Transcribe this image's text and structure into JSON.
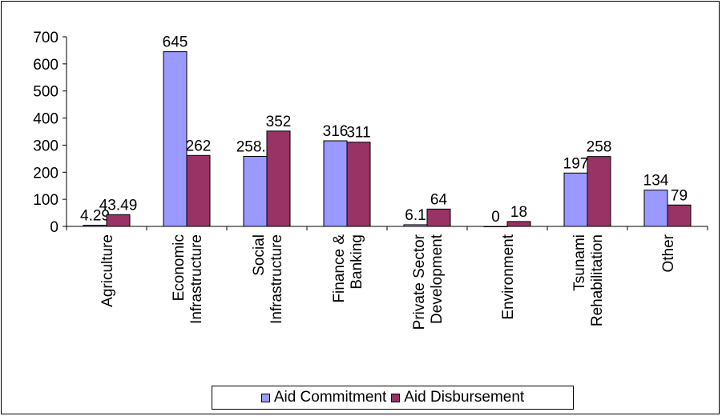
{
  "chart_data": {
    "type": "bar",
    "categories": [
      [
        "Agriculture"
      ],
      [
        "Economic",
        "Infrastructure"
      ],
      [
        "Social",
        "Infrastructure"
      ],
      [
        "Finance &",
        "Banking"
      ],
      [
        "Private Sector",
        "Development"
      ],
      [
        "Environment"
      ],
      [
        "Tsunami",
        "Rehabilitation"
      ],
      [
        "Other"
      ]
    ],
    "series": [
      {
        "name": "Aid Commitment",
        "color": "#9999FF",
        "values": [
          4.29,
          645,
          258.5,
          316,
          6.1,
          0,
          197,
          134
        ],
        "labels": [
          "4.29",
          "645",
          "258.5",
          "316",
          "6.1",
          "0",
          "197",
          "134"
        ]
      },
      {
        "name": "Aid Disbursement",
        "color": "#993366",
        "values": [
          43.49,
          262,
          352,
          311,
          64,
          18,
          258,
          79
        ],
        "labels": [
          "43.49",
          "262",
          "352",
          "311",
          "64",
          "18",
          "258",
          "79"
        ]
      }
    ],
    "ylim": [
      0,
      700
    ],
    "yticks": [
      0,
      100,
      200,
      300,
      400,
      500,
      600,
      700
    ],
    "grid": false,
    "legend_position": "bottom",
    "title": "",
    "xlabel": "",
    "ylabel": ""
  }
}
